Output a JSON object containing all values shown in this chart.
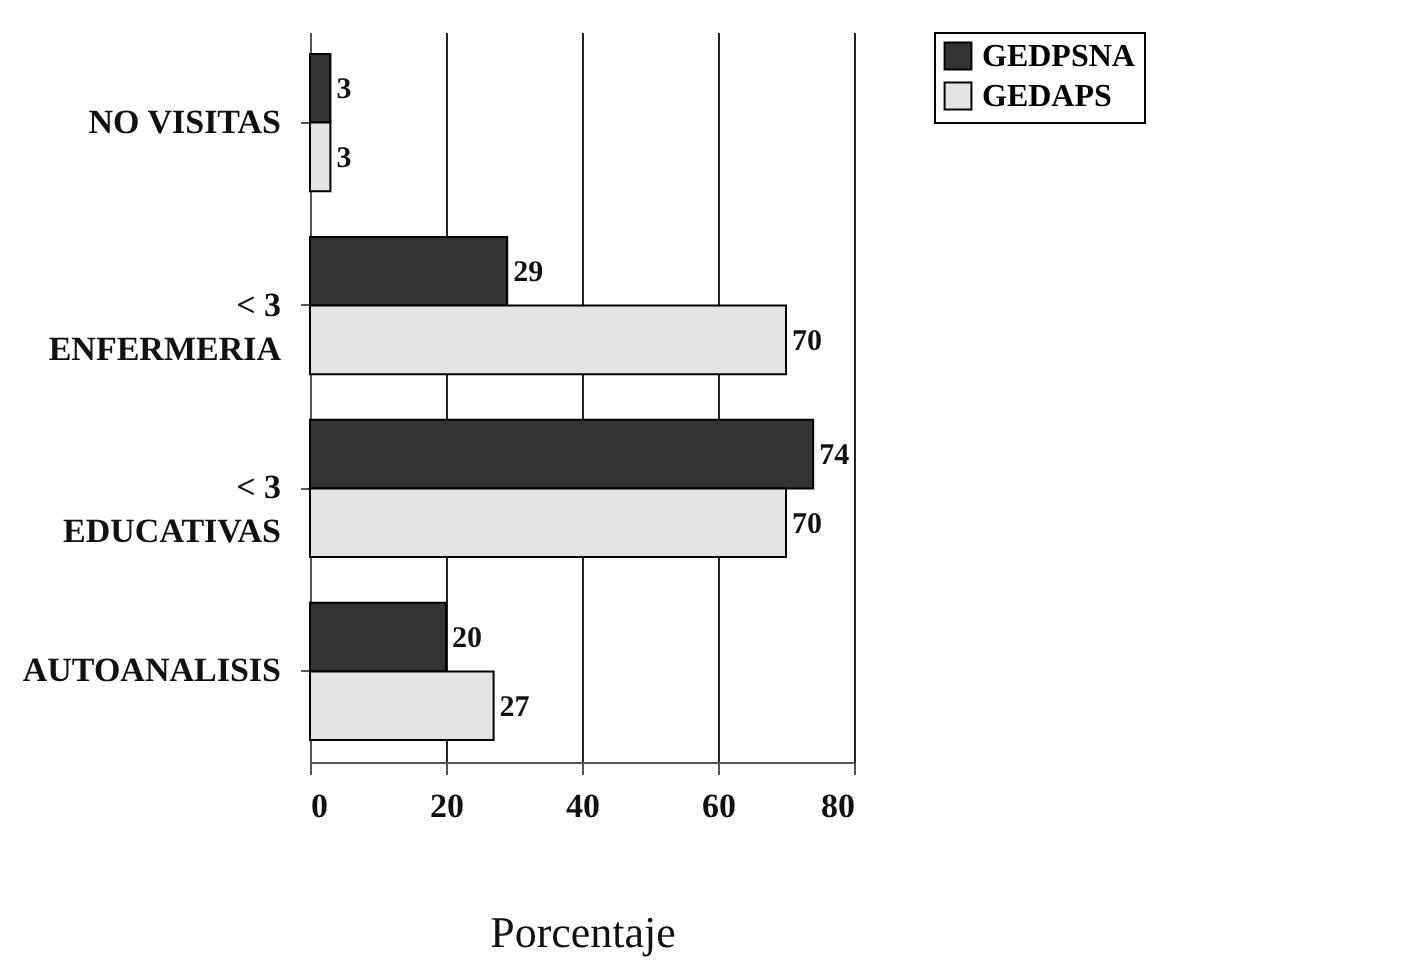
{
  "chart_data": {
    "type": "bar",
    "orientation": "horizontal",
    "xlabel": "Porcentaje",
    "categories": [
      "NO VISITAS",
      "< 3\nENFERMERIA",
      "< 3\nEDUCATIVAS",
      "AUTOANALISIS"
    ],
    "series": [
      {
        "name": "GEDPSNA",
        "color": "#333333",
        "values": [
          3,
          29,
          74,
          20
        ]
      },
      {
        "name": "GEDAPS",
        "color": "#e4e4e4",
        "values": [
          3,
          70,
          70,
          27
        ]
      }
    ],
    "xlim": [
      0,
      80
    ],
    "xticks": [
      0,
      20,
      40,
      60,
      80
    ],
    "grid": "x",
    "legend": "right",
    "data_labels": true
  }
}
